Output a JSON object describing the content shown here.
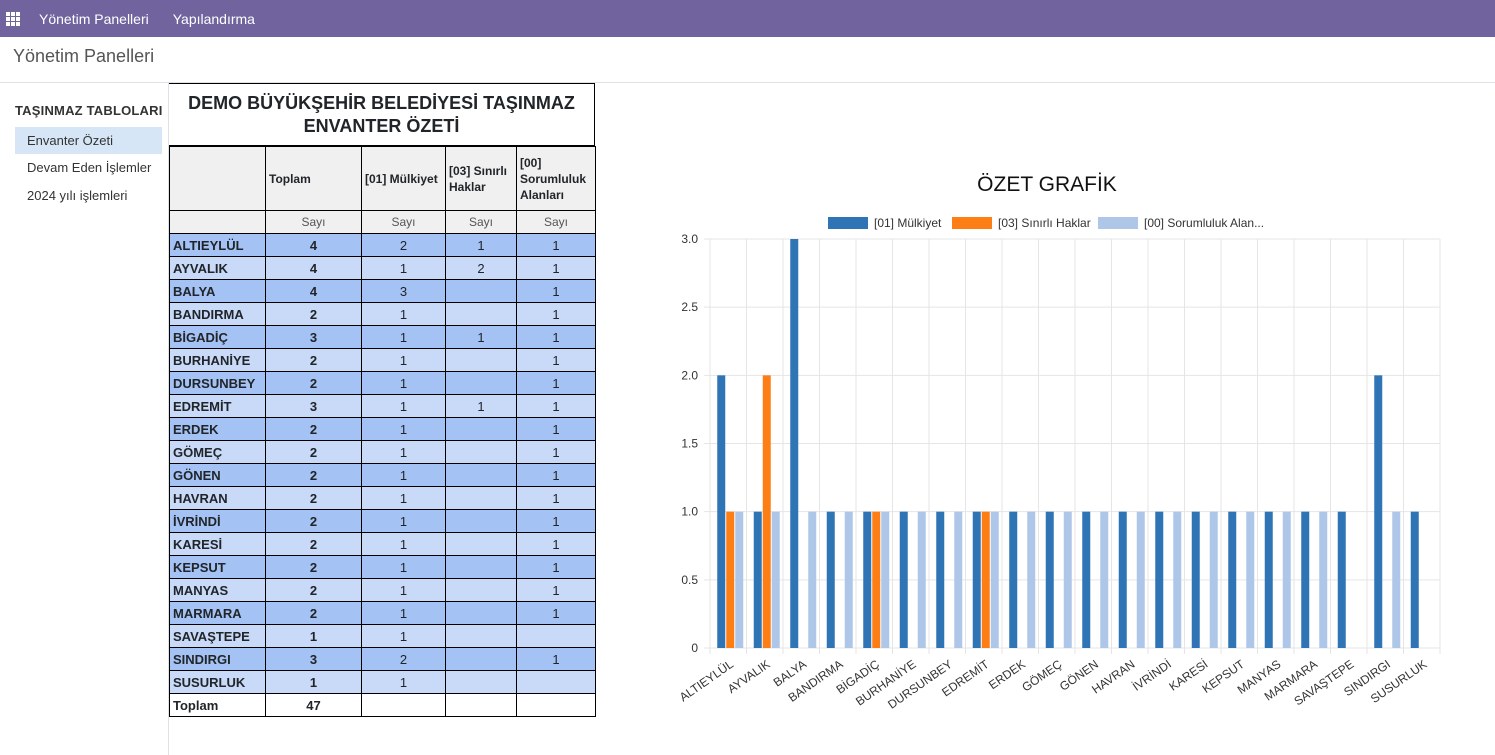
{
  "topbar": {
    "menu_items": [
      "Yönetim Panelleri",
      "Yapılandırma"
    ]
  },
  "page": {
    "title": "Yönetim Panelleri"
  },
  "sidebar": {
    "section": "TAŞINMAZ TABLOLARI",
    "items": [
      {
        "label": "Envanter Özeti",
        "active": true
      },
      {
        "label": "Devam Eden İşlemler",
        "active": false
      },
      {
        "label": "2024 yılı işlemleri",
        "active": false
      }
    ]
  },
  "table": {
    "title": "DEMO BÜYÜKŞEHİR BELEDİYESİ TAŞINMAZ ENVANTER ÖZETİ",
    "headers": [
      "",
      "Toplam",
      "[01] Mülkiyet",
      "[03] Sınırlı Haklar",
      "[00] Sorumluluk Alanları"
    ],
    "subheaders": [
      "",
      "Sayı",
      "Sayı",
      "Sayı",
      "Sayı"
    ],
    "rows": [
      {
        "name": "ALTIEYLÜL",
        "total": "4",
        "c1": "2",
        "c3": "1",
        "c0": "1"
      },
      {
        "name": "AYVALIK",
        "total": "4",
        "c1": "1",
        "c3": "2",
        "c0": "1"
      },
      {
        "name": "BALYA",
        "total": "4",
        "c1": "3",
        "c3": "",
        "c0": "1"
      },
      {
        "name": "BANDIRMA",
        "total": "2",
        "c1": "1",
        "c3": "",
        "c0": "1"
      },
      {
        "name": "BİGADİÇ",
        "total": "3",
        "c1": "1",
        "c3": "1",
        "c0": "1"
      },
      {
        "name": "BURHANİYE",
        "total": "2",
        "c1": "1",
        "c3": "",
        "c0": "1"
      },
      {
        "name": "DURSUNBEY",
        "total": "2",
        "c1": "1",
        "c3": "",
        "c0": "1"
      },
      {
        "name": "EDREMİT",
        "total": "3",
        "c1": "1",
        "c3": "1",
        "c0": "1"
      },
      {
        "name": "ERDEK",
        "total": "2",
        "c1": "1",
        "c3": "",
        "c0": "1"
      },
      {
        "name": "GÖMEÇ",
        "total": "2",
        "c1": "1",
        "c3": "",
        "c0": "1"
      },
      {
        "name": "GÖNEN",
        "total": "2",
        "c1": "1",
        "c3": "",
        "c0": "1"
      },
      {
        "name": "HAVRAN",
        "total": "2",
        "c1": "1",
        "c3": "",
        "c0": "1"
      },
      {
        "name": "İVRİNDİ",
        "total": "2",
        "c1": "1",
        "c3": "",
        "c0": "1"
      },
      {
        "name": "KARESİ",
        "total": "2",
        "c1": "1",
        "c3": "",
        "c0": "1"
      },
      {
        "name": "KEPSUT",
        "total": "2",
        "c1": "1",
        "c3": "",
        "c0": "1"
      },
      {
        "name": "MANYAS",
        "total": "2",
        "c1": "1",
        "c3": "",
        "c0": "1"
      },
      {
        "name": "MARMARA",
        "total": "2",
        "c1": "1",
        "c3": "",
        "c0": "1"
      },
      {
        "name": "SAVAŞTEPE",
        "total": "1",
        "c1": "1",
        "c3": "",
        "c0": ""
      },
      {
        "name": "SINDIRGI",
        "total": "3",
        "c1": "2",
        "c3": "",
        "c0": "1"
      },
      {
        "name": "SUSURLUK",
        "total": "1",
        "c1": "1",
        "c3": "",
        "c0": ""
      }
    ],
    "footer": {
      "label": "Toplam",
      "total": "47"
    }
  },
  "chart_data": {
    "type": "bar",
    "title": "ÖZET GRAFİK",
    "legend_position": "top",
    "categories": [
      "ALTIEYLÜL",
      "AYVALIK",
      "BALYA",
      "BANDIRMA",
      "BİGADİÇ",
      "BURHANİYE",
      "DURSUNBEY",
      "EDREMİT",
      "ERDEK",
      "GÖMEÇ",
      "GÖNEN",
      "HAVRAN",
      "İVRİNDİ",
      "KARESİ",
      "KEPSUT",
      "MANYAS",
      "MARMARA",
      "SAVAŞTEPE",
      "SINDIRGI",
      "SUSURLUK"
    ],
    "series": [
      {
        "name": "[01] Mülkiyet",
        "legend_label": "[01] Mülkiyet",
        "color": "#2f75b5",
        "values": [
          2,
          1,
          3,
          1,
          1,
          1,
          1,
          1,
          1,
          1,
          1,
          1,
          1,
          1,
          1,
          1,
          1,
          1,
          2,
          1
        ]
      },
      {
        "name": "[03] Sınırlı Haklar",
        "legend_label": "[03] Sınırlı Haklar",
        "color": "#fd7e14",
        "values": [
          1,
          2,
          0,
          0,
          1,
          0,
          0,
          1,
          0,
          0,
          0,
          0,
          0,
          0,
          0,
          0,
          0,
          0,
          0,
          0
        ]
      },
      {
        "name": "[00] Sorumluluk Alanları",
        "legend_label": "[00] Sorumluluk Alan...",
        "color": "#aec7e8",
        "values": [
          1,
          1,
          1,
          1,
          1,
          1,
          1,
          1,
          1,
          1,
          1,
          1,
          1,
          1,
          1,
          1,
          1,
          0,
          1,
          0
        ]
      }
    ],
    "ylim": [
      0,
      3
    ],
    "yticks": [
      "0",
      "0.5",
      "1.0",
      "1.5",
      "2.0",
      "2.5",
      "3.0"
    ],
    "ytick_values": [
      0,
      0.5,
      1,
      1.5,
      2,
      2.5,
      3
    ],
    "grid": true
  }
}
